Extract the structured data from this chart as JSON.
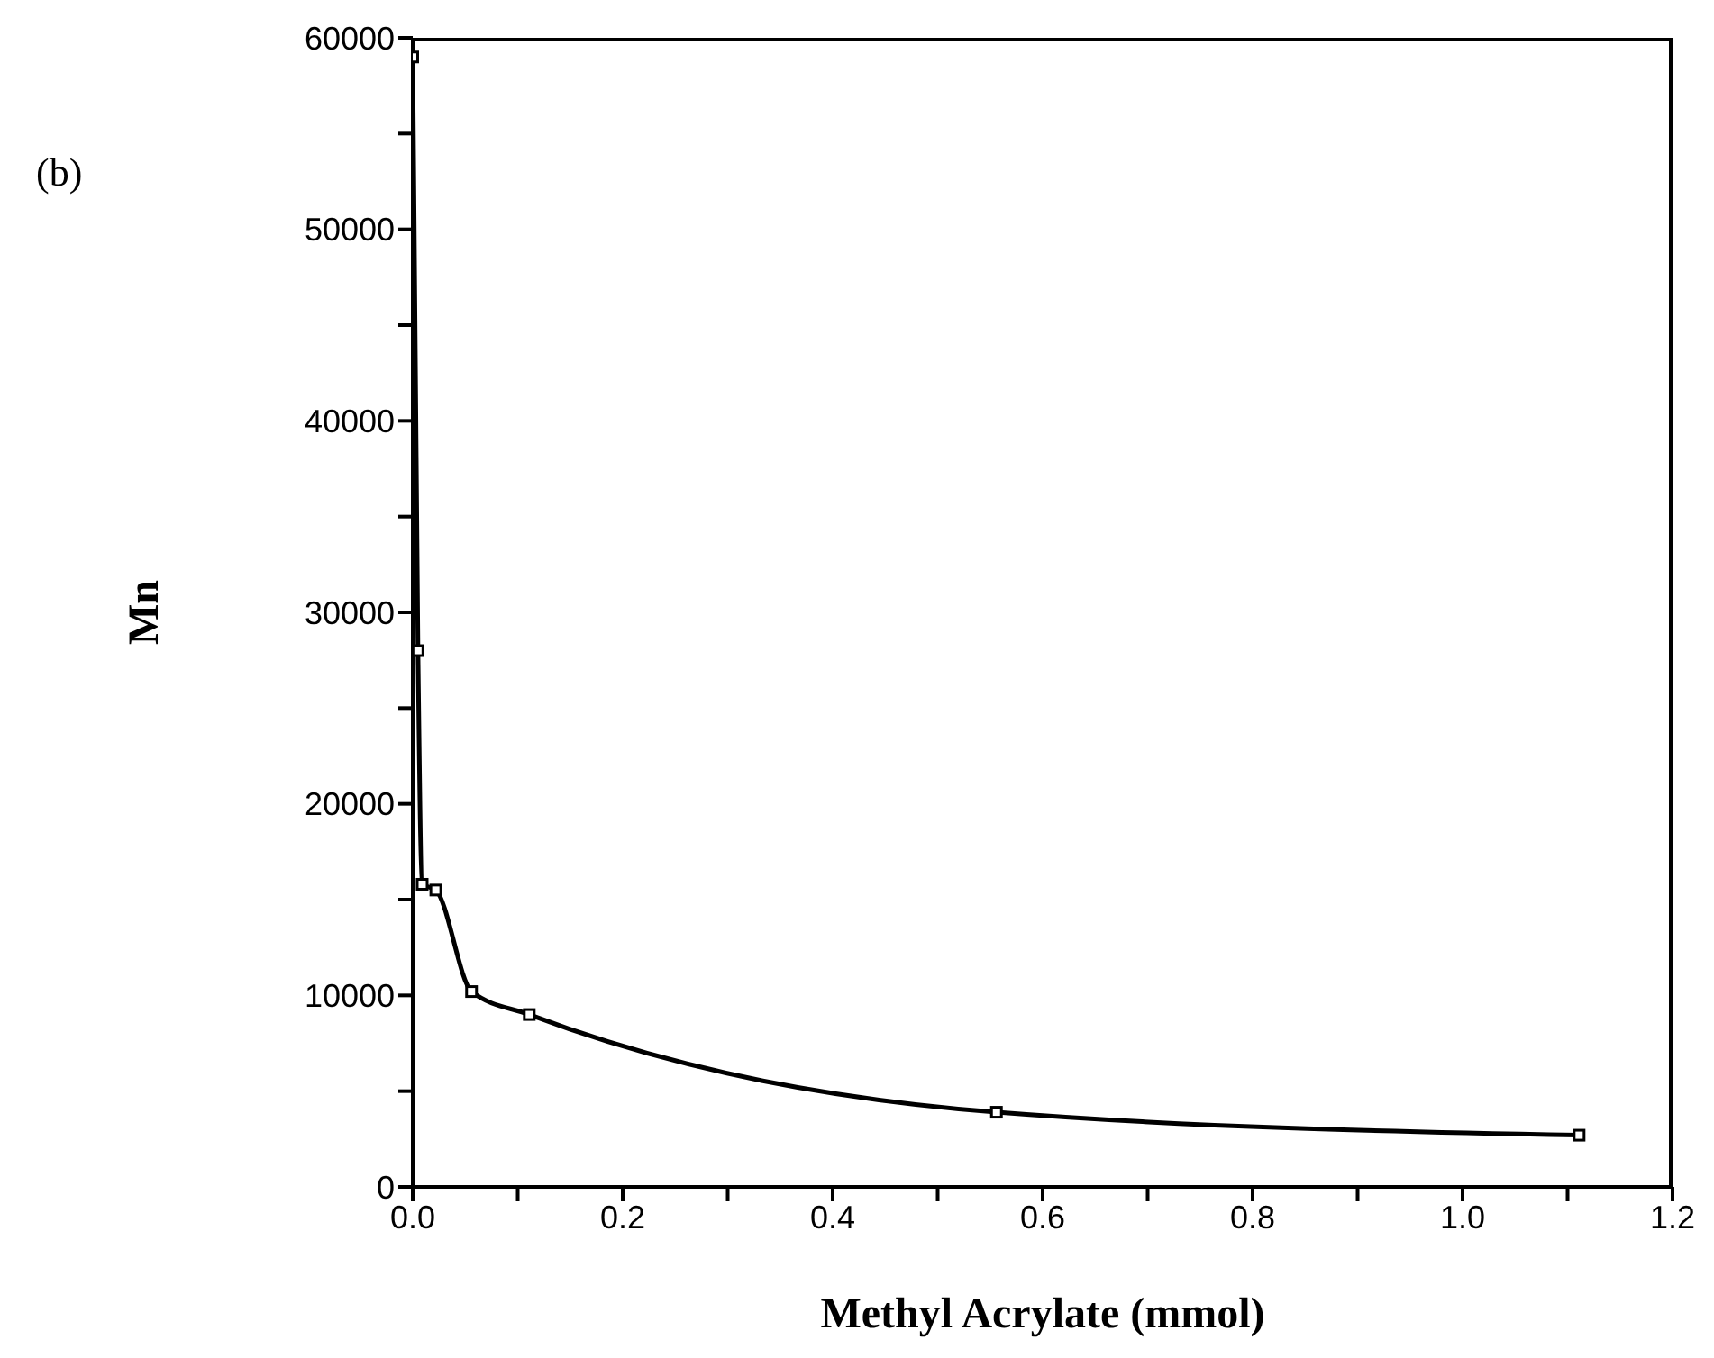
{
  "chart_data": {
    "type": "line",
    "xlabel": "Methyl Acrylate (mmol)",
    "ylabel": "Mn",
    "annotations": [
      "(b)"
    ],
    "x": [
      0,
      0.005,
      0.009,
      0.022,
      0.056,
      0.111,
      0.556,
      1.111
    ],
    "series": [
      {
        "color": "#000000",
        "values": [
          59000,
          28000,
          15800,
          15500,
          10200,
          9000,
          3900,
          2700
        ]
      }
    ],
    "xlim": [
      0,
      1.2
    ],
    "xticks": [
      {
        "value": 0,
        "label": "0.0"
      },
      {
        "value": 0.1,
        "label": null
      },
      {
        "value": 0.2,
        "label": "0.2"
      },
      {
        "value": 0.3,
        "label": null
      },
      {
        "value": 0.4,
        "label": "0.4"
      },
      {
        "value": 0.5,
        "label": null
      },
      {
        "value": 0.6,
        "label": "0.6"
      },
      {
        "value": 0.7,
        "label": null
      },
      {
        "value": 0.8,
        "label": "0.8"
      },
      {
        "value": 0.9,
        "label": null
      },
      {
        "value": 1.0,
        "label": "1.0"
      },
      {
        "value": 1.1,
        "label": null
      },
      {
        "value": 1.2,
        "label": "1.2"
      }
    ],
    "ylim": [
      0,
      60000
    ],
    "yticks": [
      0,
      {
        "value": 5000,
        "label": null
      },
      10000,
      {
        "value": 15000,
        "label": null
      },
      20000,
      {
        "value": 25000,
        "label": null
      },
      30000,
      {
        "value": 35000,
        "label": null
      },
      40000,
      {
        "value": 45000,
        "label": null
      },
      50000,
      {
        "value": 55000,
        "label": null
      },
      60000
    ],
    "grid": false,
    "marker": "square",
    "line_style": "solid"
  }
}
